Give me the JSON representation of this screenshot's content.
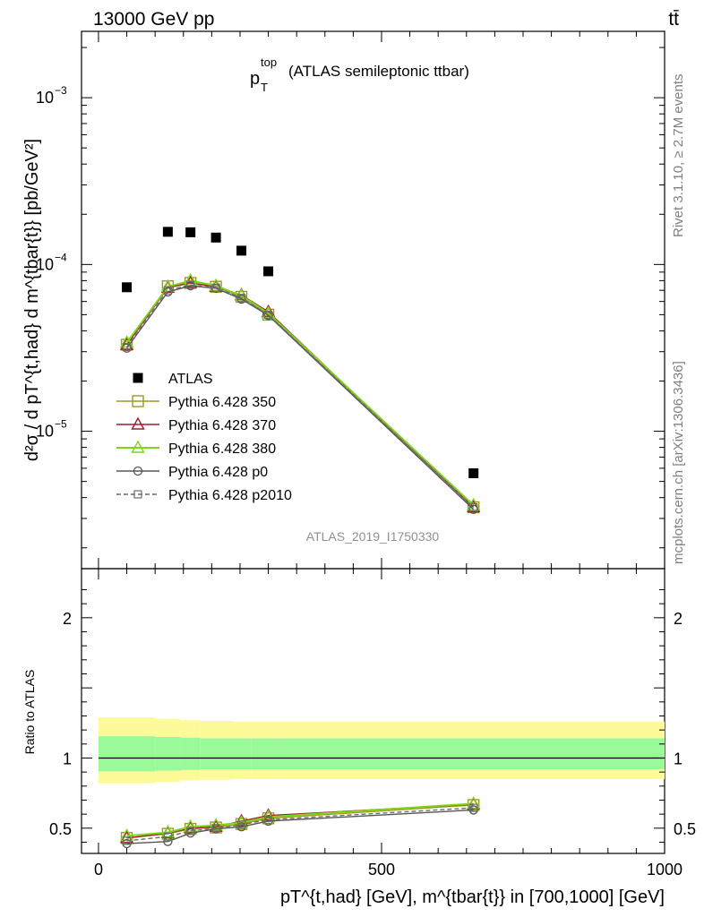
{
  "header": {
    "left": "13000 GeV pp",
    "right": "tt̄"
  },
  "plot_title": {
    "main": "p",
    "sup": "top",
    "sub": "T",
    "rest": "(ATLAS semileptonic ttbar)"
  },
  "watermark": "ATLAS_2019_I1750330",
  "side_labels": {
    "rivet": "Rivet 3.1.10, ≥ 2.7M events",
    "mcplots": "mcplots.cern.ch [arXiv:1306.3436]"
  },
  "ylabel_top": "d²σ / d pT^{t,had} d m^{tbar{t}} [pb/GeV²]",
  "ylabel_bottom": "Ratio to ATLAS",
  "xlabel": "pT^{t,had} [GeV], m^{tbar{t}} in [700,1000] [GeV]",
  "colors": {
    "atlas": "#000000",
    "p350": "#a09a20",
    "p370": "#a01c2c",
    "p380": "#7ed61a",
    "p0": "#555555",
    "p2010": "#6e6e6e",
    "band_outer": "#fdfa9a",
    "band_inner": "#9afa9a"
  },
  "chart_data": [
    {
      "type": "line",
      "panel": "main",
      "yscale": "log",
      "xlim": [
        -30,
        1000
      ],
      "ylim": [
        1.5e-06,
        0.0025
      ],
      "yticks": [
        {
          "value": 1e-05,
          "base": "10",
          "exp": "−5"
        },
        {
          "value": 0.0001,
          "base": "10",
          "exp": "−4"
        },
        {
          "value": 0.001,
          "base": "10",
          "exp": "−3"
        }
      ],
      "x": [
        50,
        122.5,
        162.5,
        207.5,
        252.5,
        300,
        662.5
      ],
      "data": {
        "name": "ATLAS",
        "y": [
          7.3e-05,
          0.000157,
          0.000156,
          0.000145,
          0.000121,
          9.1e-05,
          5.6e-06
        ]
      },
      "series": [
        {
          "name": "Pythia 6.428 350",
          "marker": "square-open",
          "dash": false,
          "y": [
            3.3e-05,
            7.4e-05,
            7.75e-05,
            7.35e-05,
            6.4e-05,
            5e-05,
            3.5e-06
          ]
        },
        {
          "name": "Pythia 6.428 370",
          "marker": "triangle-open",
          "dash": false,
          "y": [
            3.3e-05,
            7.25e-05,
            7.75e-05,
            7.35e-05,
            6.55e-05,
            5.2e-05,
            3.5e-06
          ]
        },
        {
          "name": "Pythia 6.428 380",
          "marker": "triangle-open",
          "dash": false,
          "y": [
            3.4e-05,
            7.35e-05,
            8e-05,
            7.45e-05,
            6.5e-05,
            5.1e-05,
            3.6e-06
          ]
        },
        {
          "name": "Pythia 6.428 p0",
          "marker": "circle-open",
          "dash": false,
          "y": [
            3.15e-05,
            6.85e-05,
            7.45e-05,
            7.2e-05,
            6.2e-05,
            4.95e-05,
            3.4e-06
          ]
        },
        {
          "name": "Pythia 6.428 p2010",
          "marker": "square-open-small",
          "dash": true,
          "y": [
            3.2e-05,
            7e-05,
            7.55e-05,
            7.25e-05,
            6.3e-05,
            5e-05,
            3.5e-06
          ]
        }
      ]
    },
    {
      "type": "line",
      "panel": "ratio",
      "ylim": [
        0.32,
        2.35
      ],
      "yticks": [
        {
          "value": 0.5,
          "label": "0.5"
        },
        {
          "value": 1,
          "label": "1"
        },
        {
          "value": 2,
          "label": "2"
        }
      ],
      "xticks": [
        {
          "value": 0,
          "label": "0"
        },
        {
          "value": 500,
          "label": "500"
        },
        {
          "value": 1000,
          "label": "1000"
        }
      ],
      "x": [
        50,
        122.5,
        162.5,
        207.5,
        252.5,
        300,
        662.5
      ],
      "bins": [
        [
          0,
          100
        ],
        [
          100,
          145
        ],
        [
          145,
          180
        ],
        [
          180,
          235
        ],
        [
          235,
          270
        ],
        [
          270,
          330
        ],
        [
          330,
          1000
        ]
      ],
      "band_outer": [
        [
          0.82,
          1.29
        ],
        [
          0.83,
          1.28
        ],
        [
          0.84,
          1.27
        ],
        [
          0.845,
          1.265
        ],
        [
          0.85,
          1.26
        ],
        [
          0.85,
          1.26
        ],
        [
          0.85,
          1.26
        ]
      ],
      "band_inner": [
        [
          0.905,
          1.155
        ],
        [
          0.91,
          1.15
        ],
        [
          0.915,
          1.145
        ],
        [
          0.92,
          1.14
        ],
        [
          0.92,
          1.14
        ],
        [
          0.92,
          1.14
        ],
        [
          0.92,
          1.14
        ]
      ],
      "series": [
        {
          "name": "Pythia 6.428 350",
          "y": [
            0.43,
            0.46,
            0.495,
            0.505,
            0.53,
            0.57,
            0.665
          ]
        },
        {
          "name": "Pythia 6.428 370",
          "y": [
            0.43,
            0.465,
            0.5,
            0.51,
            0.55,
            0.59,
            0.67
          ]
        },
        {
          "name": "Pythia 6.428 380",
          "y": [
            0.445,
            0.47,
            0.51,
            0.52,
            0.54,
            0.58,
            0.675
          ]
        },
        {
          "name": "Pythia 6.428 p0",
          "y": [
            0.39,
            0.405,
            0.465,
            0.495,
            0.51,
            0.55,
            0.63
          ]
        },
        {
          "name": "Pythia 6.428 p2010",
          "y": [
            0.41,
            0.44,
            0.48,
            0.5,
            0.525,
            0.56,
            0.645
          ]
        }
      ]
    }
  ]
}
